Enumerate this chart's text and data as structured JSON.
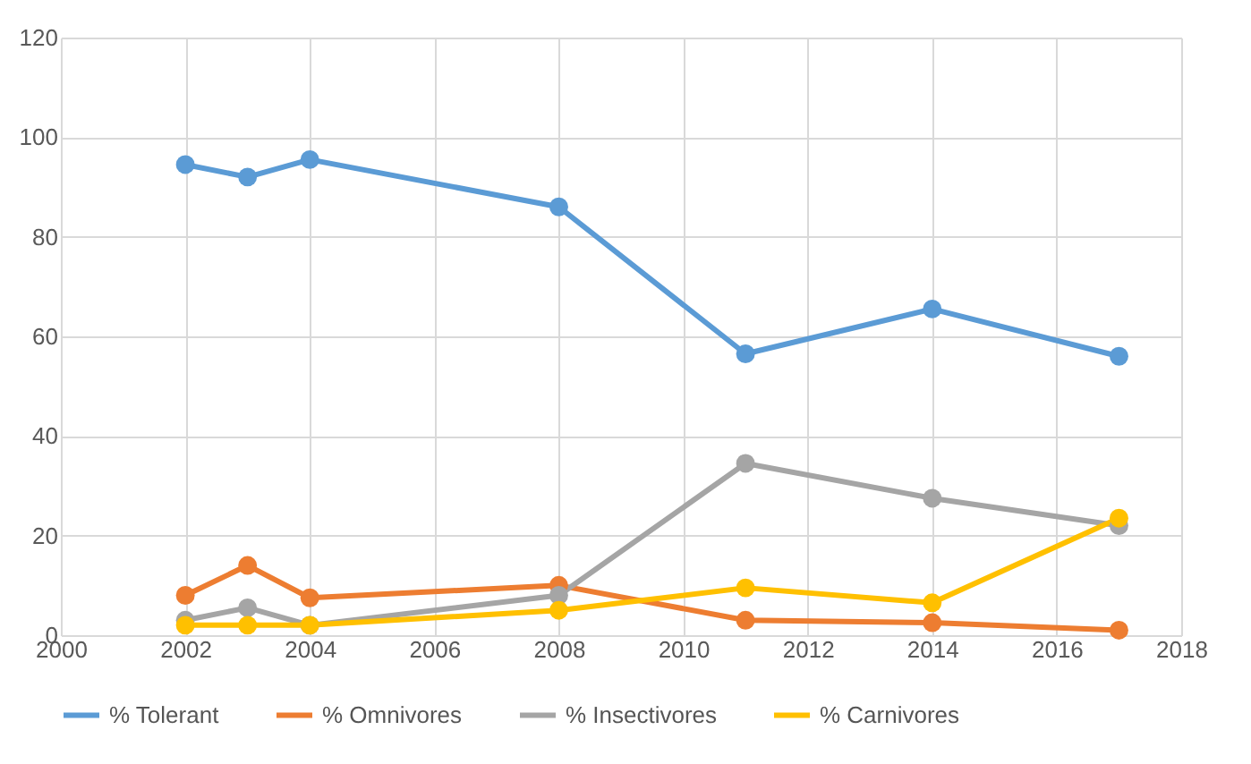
{
  "chart_data": {
    "type": "line",
    "x": [
      2002,
      2003,
      2004,
      2008,
      2011,
      2014,
      2017
    ],
    "xlim": [
      2000,
      2018
    ],
    "xticks": [
      2000,
      2002,
      2004,
      2006,
      2008,
      2010,
      2012,
      2014,
      2016,
      2018
    ],
    "ylim": [
      0,
      120
    ],
    "yticks": [
      0,
      20,
      40,
      60,
      80,
      100,
      120
    ],
    "grid": true,
    "legend": "bottom",
    "marker": "circle",
    "line_style": "solid",
    "series": [
      {
        "name": "% Tolerant",
        "color": "#5b9bd5",
        "values": [
          94.5,
          92,
          95.5,
          86,
          56.5,
          65.5,
          56
        ]
      },
      {
        "name": "% Omnivores",
        "color": "#ed7d31",
        "values": [
          8,
          14,
          7.5,
          10,
          3,
          2.5,
          1
        ]
      },
      {
        "name": "% Insectivores",
        "color": "#a5a5a5",
        "values": [
          3,
          5.5,
          2,
          8,
          34.5,
          27.5,
          22
        ]
      },
      {
        "name": "% Carnivores",
        "color": "#ffc000",
        "values": [
          2,
          2,
          2,
          5,
          9.5,
          6.5,
          23.5
        ]
      }
    ]
  }
}
